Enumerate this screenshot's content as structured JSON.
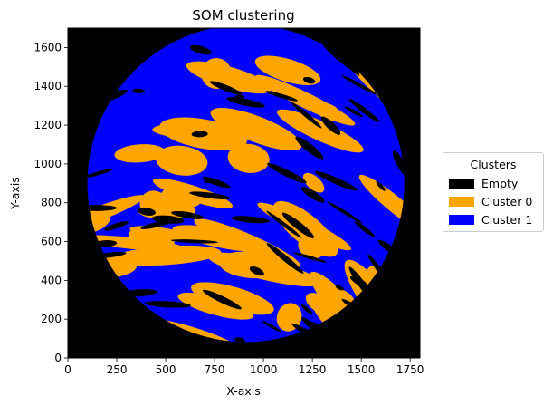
{
  "chart_data": {
    "type": "heatmap",
    "title": "SOM clustering",
    "xlabel": "X-axis",
    "ylabel": "Y-axis",
    "xlim": [
      0,
      1800
    ],
    "ylim": [
      0,
      1700
    ],
    "xticks": [
      0,
      250,
      500,
      750,
      1000,
      1250,
      1500,
      1750
    ],
    "yticks": [
      0,
      200,
      400,
      600,
      800,
      1000,
      1200,
      1400,
      1600
    ],
    "legend": {
      "title": "Clusters",
      "placement": "right, outside plot",
      "entries": [
        {
          "label": "Empty",
          "color": "#000000"
        },
        {
          "label": "Cluster 0",
          "color": "#ffa500"
        },
        {
          "label": "Cluster 1",
          "color": "#0000ff"
        }
      ]
    },
    "region": {
      "shape": "circle",
      "center": [
        910,
        900
      ],
      "radius": 810
    },
    "grid": false
  }
}
